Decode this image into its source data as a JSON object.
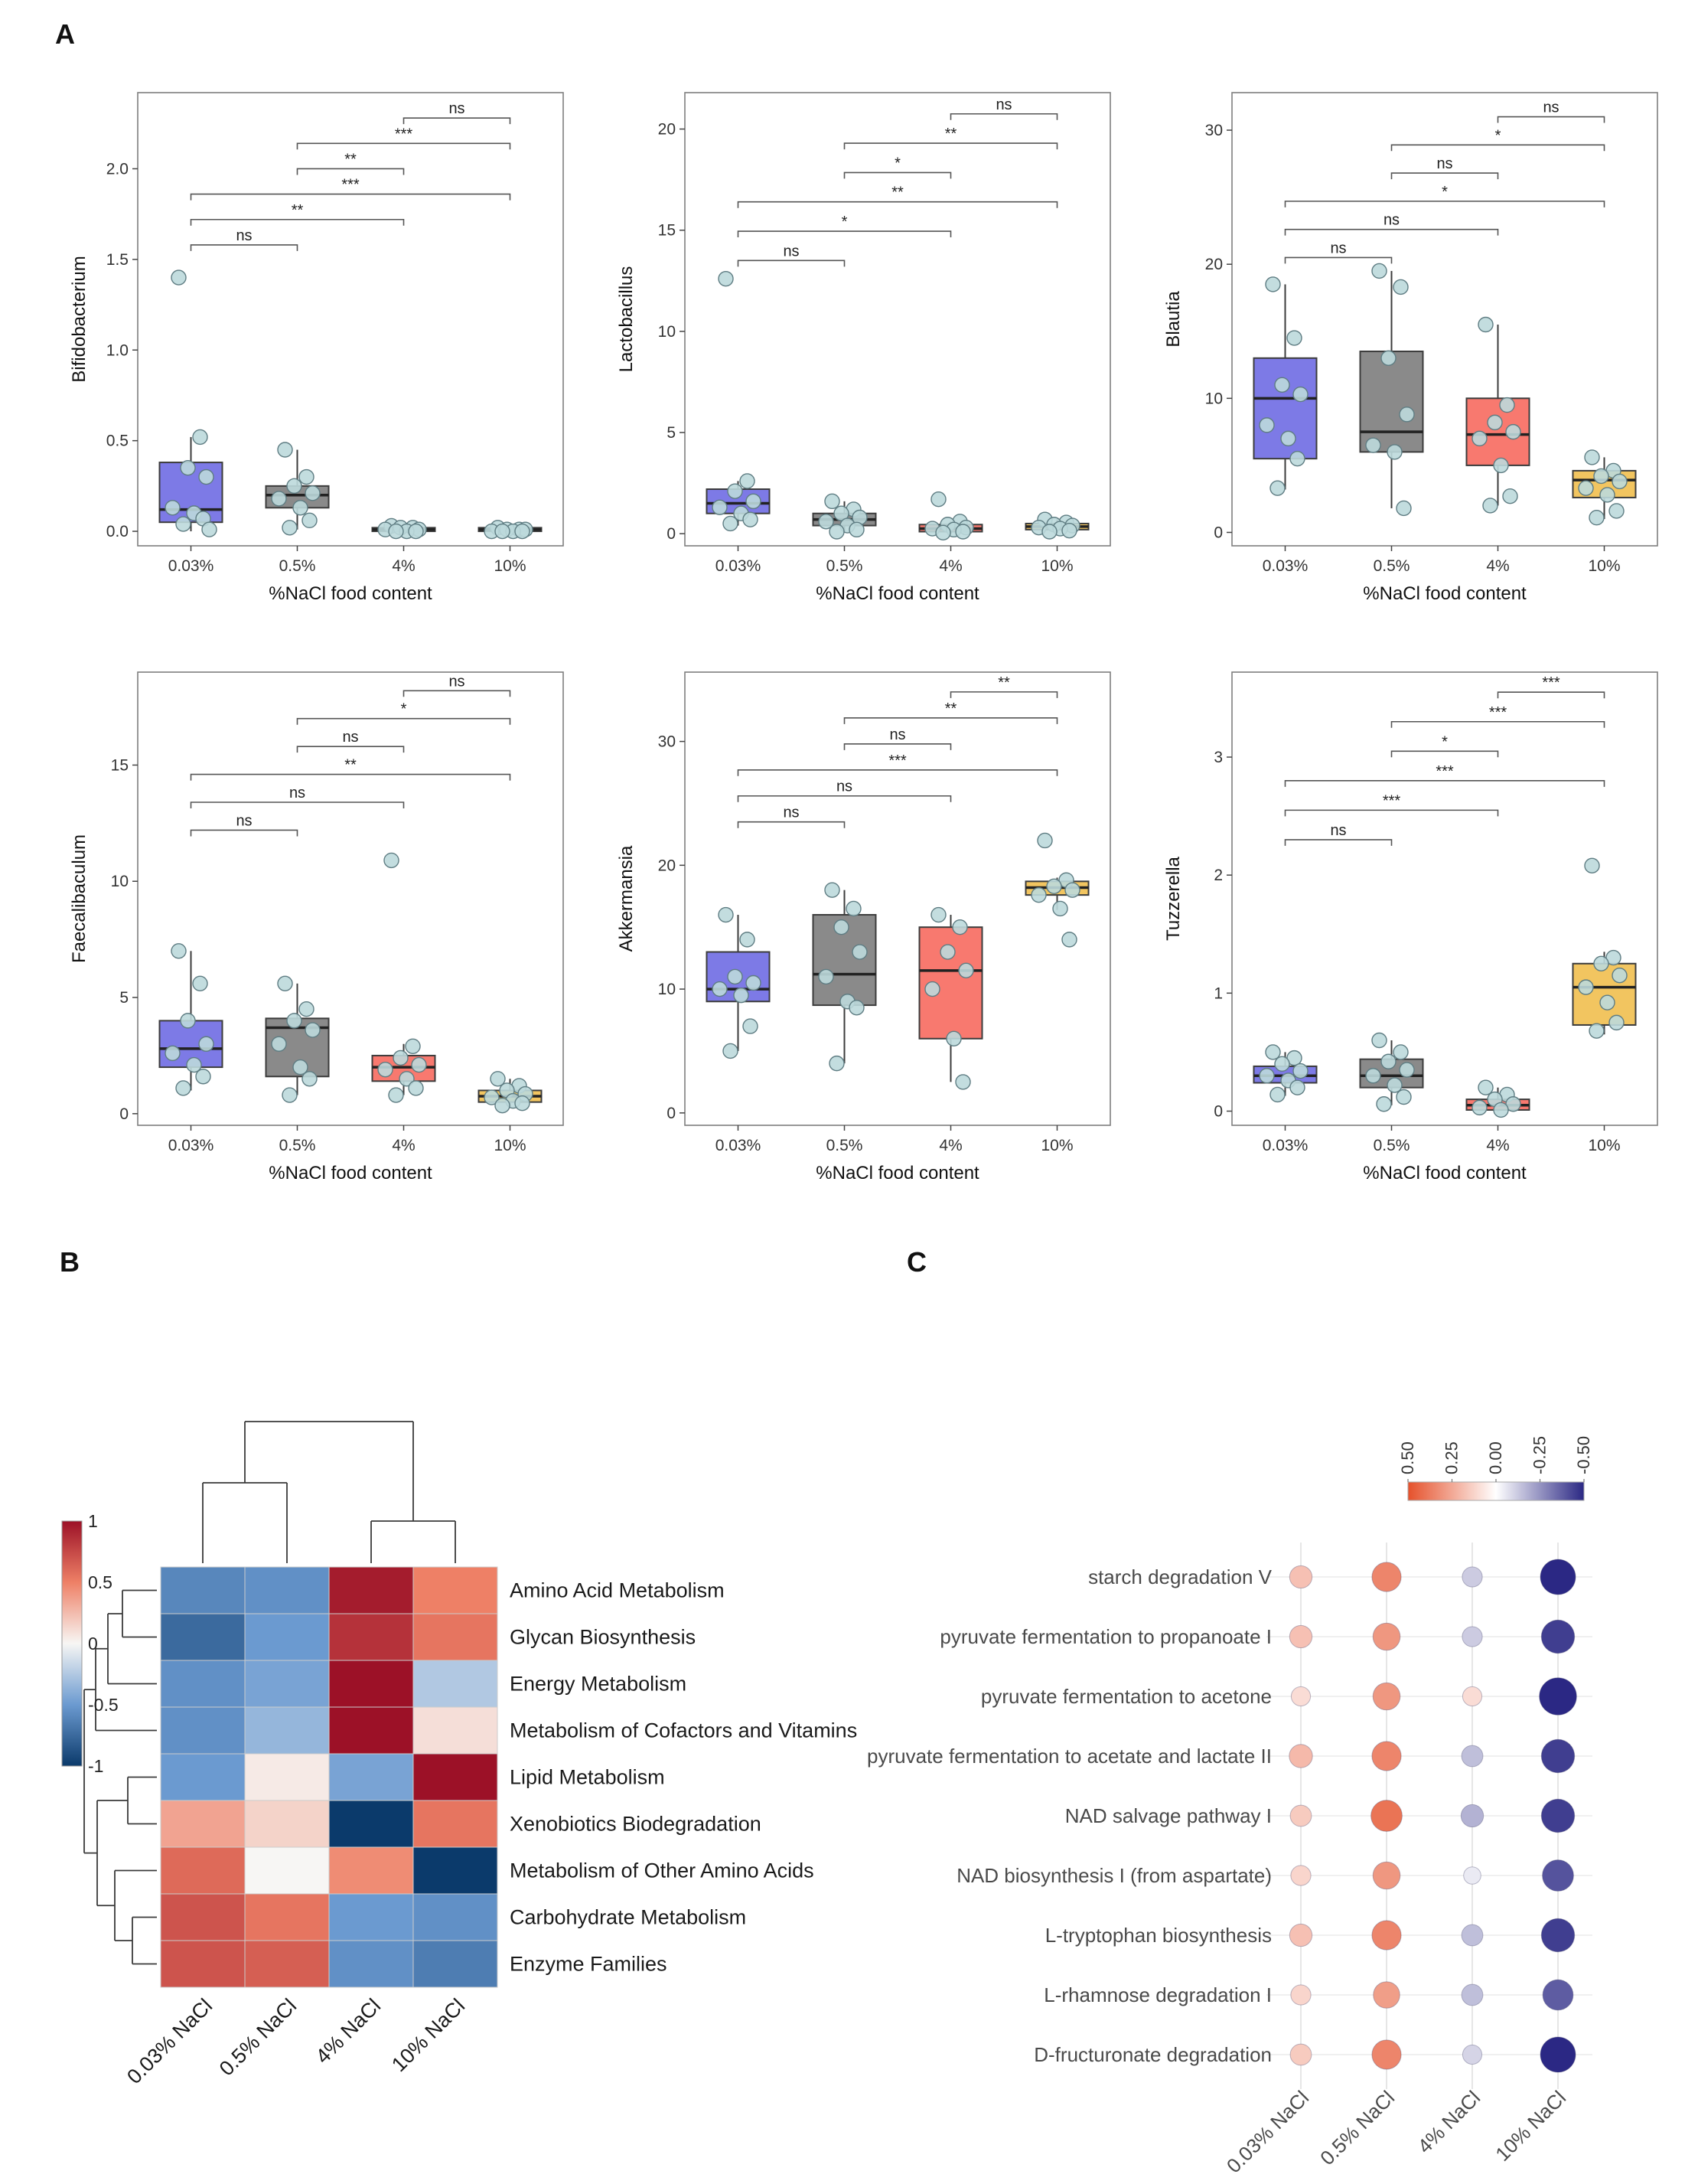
{
  "panel_labels": {
    "a": "A",
    "b": "B",
    "c": "C"
  },
  "chart_data": [
    {
      "id": "boxplots",
      "type": "boxplot-grid",
      "xlabel": "%NaCl food content",
      "categories": [
        "0.03%",
        "0.5%",
        "4%",
        "10%"
      ],
      "group_colors": [
        "#7d7ae6",
        "#8a8a8a",
        "#f8796f",
        "#f2c560"
      ],
      "point_fill": "#bcd9dc",
      "point_stroke": "#5f7d83",
      "plots": [
        {
          "ylabel": "Bifidobacterium",
          "ylim": [
            -0.08,
            2.42
          ],
          "yticks": [
            0,
            0.5,
            1,
            1.5,
            2
          ],
          "ytick_labels": [
            "0.0",
            "0.5",
            "1.0",
            "1.5",
            "2.0"
          ],
          "bracket_base": 1.58,
          "bracket_step": 0.14,
          "groups": [
            {
              "q1": 0.05,
              "med": 0.12,
              "q3": 0.38,
              "lo": 0.0,
              "hi": 0.52,
              "points": [
                1.4,
                0.52,
                0.35,
                0.3,
                0.13,
                0.1,
                0.07,
                0.04,
                0.01
              ]
            },
            {
              "q1": 0.13,
              "med": 0.2,
              "q3": 0.25,
              "lo": 0.01,
              "hi": 0.45,
              "points": [
                0.45,
                0.3,
                0.25,
                0.21,
                0.18,
                0.13,
                0.06,
                0.02
              ]
            },
            {
              "q1": 0.0,
              "med": 0.01,
              "q3": 0.02,
              "lo": 0.0,
              "hi": 0.03,
              "points": [
                0.03,
                0.02,
                0.02,
                0.01,
                0.01,
                0.0,
                0.0,
                0.0
              ]
            },
            {
              "q1": 0.0,
              "med": 0.01,
              "q3": 0.02,
              "lo": 0.0,
              "hi": 0.02,
              "points": [
                0.02,
                0.01,
                0.01,
                0.01,
                0.0,
                0.0,
                0.0,
                0.0
              ]
            }
          ],
          "comparisons": [
            {
              "a": 0,
              "b": 1,
              "label": "ns"
            },
            {
              "a": 0,
              "b": 2,
              "label": "**"
            },
            {
              "a": 0,
              "b": 3,
              "label": "***"
            },
            {
              "a": 1,
              "b": 2,
              "label": "**"
            },
            {
              "a": 1,
              "b": 3,
              "label": "***"
            },
            {
              "a": 2,
              "b": 3,
              "label": "ns"
            }
          ]
        },
        {
          "ylabel": "Lactobacillus",
          "ylim": [
            -0.6,
            21.8
          ],
          "yticks": [
            0,
            5,
            10,
            15,
            20
          ],
          "ytick_labels": [
            "0",
            "5",
            "10",
            "15",
            "20"
          ],
          "bracket_base": 13.5,
          "bracket_step": 1.45,
          "groups": [
            {
              "q1": 1.0,
              "med": 1.5,
              "q3": 2.2,
              "lo": 0.4,
              "hi": 2.6,
              "points": [
                12.6,
                2.6,
                2.1,
                1.6,
                1.3,
                1.0,
                0.7,
                0.5
              ]
            },
            {
              "q1": 0.4,
              "med": 0.7,
              "q3": 1.0,
              "lo": 0.1,
              "hi": 1.6,
              "points": [
                1.6,
                1.2,
                1.0,
                0.8,
                0.6,
                0.4,
                0.2,
                0.1
              ]
            },
            {
              "q1": 0.1,
              "med": 0.25,
              "q3": 0.45,
              "lo": 0.0,
              "hi": 0.6,
              "points": [
                1.7,
                0.6,
                0.45,
                0.3,
                0.25,
                0.2,
                0.1,
                0.05
              ]
            },
            {
              "q1": 0.2,
              "med": 0.35,
              "q3": 0.5,
              "lo": 0.05,
              "hi": 0.7,
              "points": [
                0.7,
                0.55,
                0.45,
                0.4,
                0.3,
                0.25,
                0.15,
                0.1
              ]
            }
          ],
          "comparisons": [
            {
              "a": 0,
              "b": 1,
              "label": "ns"
            },
            {
              "a": 0,
              "b": 2,
              "label": "*"
            },
            {
              "a": 0,
              "b": 3,
              "label": "**"
            },
            {
              "a": 1,
              "b": 2,
              "label": "*"
            },
            {
              "a": 1,
              "b": 3,
              "label": "**"
            },
            {
              "a": 2,
              "b": 3,
              "label": "ns"
            }
          ]
        },
        {
          "ylabel": "Blautia",
          "ylim": [
            -1,
            32.8
          ],
          "yticks": [
            0,
            10,
            20,
            30
          ],
          "ytick_labels": [
            "0",
            "10",
            "20",
            "30"
          ],
          "bracket_base": 20.5,
          "bracket_step": 2.1,
          "groups": [
            {
              "q1": 5.5,
              "med": 10.0,
              "q3": 13.0,
              "lo": 3.2,
              "hi": 18.5,
              "points": [
                18.5,
                14.5,
                11.0,
                10.3,
                8.0,
                7.0,
                5.5,
                3.3
              ]
            },
            {
              "q1": 6.0,
              "med": 7.5,
              "q3": 13.5,
              "lo": 1.8,
              "hi": 19.5,
              "points": [
                19.5,
                18.3,
                13.0,
                8.8,
                6.5,
                6.0,
                1.8
              ]
            },
            {
              "q1": 5.0,
              "med": 7.3,
              "q3": 10.0,
              "lo": 2.0,
              "hi": 15.5,
              "points": [
                15.5,
                9.5,
                8.2,
                7.5,
                7.0,
                5.0,
                2.7,
                2.0
              ]
            },
            {
              "q1": 2.6,
              "med": 3.9,
              "q3": 4.6,
              "lo": 1.0,
              "hi": 5.6,
              "points": [
                5.6,
                4.6,
                4.2,
                3.8,
                3.3,
                2.8,
                1.6,
                1.1
              ]
            }
          ],
          "comparisons": [
            {
              "a": 0,
              "b": 1,
              "label": "ns"
            },
            {
              "a": 0,
              "b": 2,
              "label": "ns"
            },
            {
              "a": 0,
              "b": 3,
              "label": "*"
            },
            {
              "a": 1,
              "b": 2,
              "label": "ns"
            },
            {
              "a": 1,
              "b": 3,
              "label": "*"
            },
            {
              "a": 2,
              "b": 3,
              "label": "ns"
            }
          ]
        },
        {
          "ylabel": "Faecalibaculum",
          "ylim": [
            -0.5,
            19
          ],
          "yticks": [
            0,
            5,
            10,
            15
          ],
          "ytick_labels": [
            "0",
            "5",
            "10",
            "15"
          ],
          "bracket_base": 12.2,
          "bracket_step": 1.2,
          "groups": [
            {
              "q1": 2.0,
              "med": 2.8,
              "q3": 4.0,
              "lo": 1.0,
              "hi": 7.0,
              "points": [
                7.0,
                5.6,
                4.0,
                3.0,
                2.6,
                2.1,
                1.6,
                1.1
              ]
            },
            {
              "q1": 1.6,
              "med": 3.7,
              "q3": 4.1,
              "lo": 0.8,
              "hi": 5.6,
              "points": [
                5.6,
                4.5,
                4.0,
                3.6,
                3.0,
                2.0,
                1.5,
                0.8
              ]
            },
            {
              "q1": 1.4,
              "med": 2.0,
              "q3": 2.5,
              "lo": 0.8,
              "hi": 3.0,
              "points": [
                10.9,
                2.9,
                2.4,
                2.1,
                1.9,
                1.5,
                1.1,
                0.8
              ]
            },
            {
              "q1": 0.5,
              "med": 0.75,
              "q3": 1.0,
              "lo": 0.3,
              "hi": 1.5,
              "points": [
                1.5,
                1.2,
                1.0,
                0.85,
                0.7,
                0.55,
                0.45,
                0.35
              ]
            }
          ],
          "comparisons": [
            {
              "a": 0,
              "b": 1,
              "label": "ns"
            },
            {
              "a": 0,
              "b": 2,
              "label": "ns"
            },
            {
              "a": 0,
              "b": 3,
              "label": "**"
            },
            {
              "a": 1,
              "b": 2,
              "label": "ns"
            },
            {
              "a": 1,
              "b": 3,
              "label": "*"
            },
            {
              "a": 2,
              "b": 3,
              "label": "ns"
            }
          ]
        },
        {
          "ylabel": "Akkermansia",
          "ylim": [
            -1,
            35.6
          ],
          "yticks": [
            0,
            10,
            20,
            30
          ],
          "ytick_labels": [
            "0",
            "10",
            "20",
            "30"
          ],
          "bracket_base": 23.5,
          "bracket_step": 2.1,
          "groups": [
            {
              "q1": 9.0,
              "med": 10.0,
              "q3": 13.0,
              "lo": 5.0,
              "hi": 16.0,
              "points": [
                16.0,
                14.0,
                11.0,
                10.5,
                10.0,
                9.5,
                7.0,
                5.0
              ]
            },
            {
              "q1": 8.7,
              "med": 11.2,
              "q3": 16.0,
              "lo": 4.0,
              "hi": 18.0,
              "points": [
                18.0,
                16.5,
                15.0,
                13.0,
                11.0,
                9.0,
                8.5,
                4.0
              ]
            },
            {
              "q1": 6.0,
              "med": 11.5,
              "q3": 15.0,
              "lo": 2.5,
              "hi": 16.0,
              "points": [
                16.0,
                15.0,
                13.0,
                11.5,
                10.0,
                6.0,
                2.5
              ]
            },
            {
              "q1": 17.6,
              "med": 18.2,
              "q3": 18.7,
              "lo": 16.4,
              "hi": 19.0,
              "points": [
                22.0,
                18.8,
                18.3,
                18.0,
                17.6,
                16.5,
                14.0
              ]
            }
          ],
          "comparisons": [
            {
              "a": 0,
              "b": 1,
              "label": "ns"
            },
            {
              "a": 0,
              "b": 2,
              "label": "ns"
            },
            {
              "a": 0,
              "b": 3,
              "label": "***"
            },
            {
              "a": 1,
              "b": 2,
              "label": "ns"
            },
            {
              "a": 1,
              "b": 3,
              "label": "**"
            },
            {
              "a": 2,
              "b": 3,
              "label": "**"
            }
          ]
        },
        {
          "ylabel": "Tuzzerella",
          "ylim": [
            -0.12,
            3.72
          ],
          "yticks": [
            0,
            1,
            2,
            3
          ],
          "ytick_labels": [
            "0",
            "1",
            "2",
            "3"
          ],
          "bracket_base": 2.3,
          "bracket_step": 0.25,
          "groups": [
            {
              "q1": 0.24,
              "med": 0.3,
              "q3": 0.38,
              "lo": 0.13,
              "hi": 0.5,
              "points": [
                0.5,
                0.45,
                0.4,
                0.34,
                0.3,
                0.26,
                0.2,
                0.14
              ]
            },
            {
              "q1": 0.2,
              "med": 0.3,
              "q3": 0.44,
              "lo": 0.05,
              "hi": 0.6,
              "points": [
                0.6,
                0.5,
                0.42,
                0.35,
                0.3,
                0.22,
                0.12,
                0.06
              ]
            },
            {
              "q1": 0.01,
              "med": 0.05,
              "q3": 0.1,
              "lo": 0.0,
              "hi": 0.2,
              "points": [
                0.2,
                0.14,
                0.1,
                0.06,
                0.03,
                0.01
              ]
            },
            {
              "q1": 0.73,
              "med": 1.05,
              "q3": 1.25,
              "lo": 0.65,
              "hi": 1.35,
              "points": [
                2.08,
                1.3,
                1.25,
                1.15,
                1.05,
                0.92,
                0.75,
                0.68
              ]
            }
          ],
          "comparisons": [
            {
              "a": 0,
              "b": 1,
              "label": "ns"
            },
            {
              "a": 0,
              "b": 2,
              "label": "***"
            },
            {
              "a": 0,
              "b": 3,
              "label": "***"
            },
            {
              "a": 1,
              "b": 2,
              "label": "*"
            },
            {
              "a": 1,
              "b": 3,
              "label": "***"
            },
            {
              "a": 2,
              "b": 3,
              "label": "***"
            }
          ]
        }
      ]
    },
    {
      "id": "heatmap",
      "type": "heatmap",
      "rows": [
        "Amino Acid Metabolism",
        "Glycan Biosynthesis",
        "Energy Metabolism",
        "Metabolism of Cofactors and Vitamins",
        "Lipid Metabolism",
        "Xenobiotics Biodegradation",
        "Metabolism of Other Amino Acids",
        "Carbohydrate Metabolism",
        "Enzyme Families"
      ],
      "columns": [
        "0.03% NaCl",
        "0.5% NaCl",
        "4% NaCl",
        "10% NaCl"
      ],
      "values": [
        [
          -0.6,
          -0.55,
          0.95,
          0.5
        ],
        [
          -0.75,
          -0.5,
          0.85,
          0.55
        ],
        [
          -0.55,
          -0.45,
          1.0,
          -0.25
        ],
        [
          -0.55,
          -0.35,
          1.0,
          0.1
        ],
        [
          -0.5,
          0.05,
          -0.45,
          1.0
        ],
        [
          0.35,
          0.15,
          -1.0,
          0.55
        ],
        [
          0.6,
          0.0,
          0.45,
          -1.0
        ],
        [
          0.7,
          0.55,
          -0.5,
          -0.55
        ],
        [
          0.7,
          0.65,
          -0.55,
          -0.65
        ]
      ],
      "legend_ticks": [
        "1",
        "0.5",
        "0",
        "-0.5",
        "-1"
      ],
      "legend_range": [
        1,
        -1
      ],
      "color_scale": {
        "positive": "#9c1127",
        "mid_positive": "#ee8066",
        "mid": "#f7f6f4",
        "mid_negative": "#6b9ad0",
        "negative": "#0b3a6b"
      }
    },
    {
      "id": "dotplot",
      "type": "dot",
      "rows": [
        "starch degradation V",
        "pyruvate fermentation to propanoate I",
        "pyruvate fermentation to acetone",
        "pyruvate fermentation to acetate and lactate II",
        "NAD salvage pathway I",
        "NAD biosynthesis I (from aspartate)",
        "L-tryptophan biosynthesis",
        "L-rhamnose degradation I",
        "D-fructuronate degradation"
      ],
      "columns": [
        "0.03% NaCl",
        "0.5% NaCl",
        "4% NaCl",
        "10% NaCl"
      ],
      "values": [
        [
          0.18,
          0.35,
          -0.12,
          -0.5
        ],
        [
          0.18,
          0.3,
          -0.12,
          -0.45
        ],
        [
          0.1,
          0.3,
          0.1,
          -0.55
        ],
        [
          0.2,
          0.35,
          -0.15,
          -0.45
        ],
        [
          0.15,
          0.4,
          -0.18,
          -0.45
        ],
        [
          0.12,
          0.3,
          -0.05,
          -0.4
        ],
        [
          0.18,
          0.35,
          -0.15,
          -0.45
        ],
        [
          0.12,
          0.28,
          -0.15,
          -0.38
        ],
        [
          0.15,
          0.35,
          -0.1,
          -0.5
        ]
      ],
      "legend_ticks": [
        "0.50",
        "0.25",
        "0.00",
        "-0.25",
        "-0.50"
      ],
      "legend_range": [
        0.5,
        -0.5
      ],
      "color_scale": {
        "positive": "#e5512b",
        "mid": "#ffffff",
        "negative": "#2b2884"
      }
    }
  ]
}
